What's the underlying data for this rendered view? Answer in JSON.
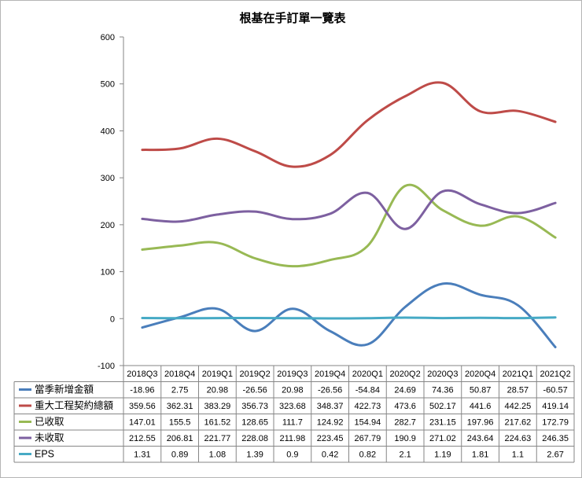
{
  "chart_data": {
    "type": "line",
    "title": "根基在手訂單一覽表",
    "categories": [
      "2018Q3",
      "2018Q4",
      "2019Q1",
      "2019Q2",
      "2019Q3",
      "2019Q4",
      "2020Q1",
      "2020Q2",
      "2020Q3",
      "2020Q4",
      "2021Q1",
      "2021Q2"
    ],
    "ylim": [
      -100,
      600
    ],
    "yticks": [
      "-100",
      "0",
      "100",
      "200",
      "300",
      "400",
      "500",
      "600"
    ],
    "ytick_values": [
      -100,
      0,
      100,
      200,
      300,
      400,
      500,
      600
    ],
    "gridlines": false,
    "legend": "data-table-below",
    "series": [
      {
        "name": "當季新增金額",
        "color": "#4a7ebb",
        "values": [
          -18.96,
          2.75,
          20.98,
          -26.56,
          20.98,
          -26.56,
          -54.84,
          24.69,
          74.36,
          50.87,
          28.57,
          -60.57
        ]
      },
      {
        "name": "重大工程契約總額",
        "color": "#be4b48",
        "values": [
          359.56,
          362.31,
          383.29,
          356.73,
          323.68,
          348.37,
          422.73,
          473.6,
          502.17,
          441.6,
          442.25,
          419.14
        ]
      },
      {
        "name": "已收取",
        "color": "#98b954",
        "values": [
          147.01,
          155.5,
          161.52,
          128.65,
          111.7,
          124.92,
          154.94,
          282.7,
          231.15,
          197.96,
          217.62,
          172.79
        ]
      },
      {
        "name": "未收取",
        "color": "#7d60a0",
        "values": [
          212.55,
          206.81,
          221.77,
          228.08,
          211.98,
          223.45,
          267.79,
          190.9,
          271.02,
          243.64,
          224.63,
          246.35
        ]
      },
      {
        "name": "EPS",
        "color": "#46aac5",
        "values": [
          1.31,
          0.89,
          1.08,
          1.39,
          0.9,
          0.42,
          0.82,
          2.1,
          1.19,
          1.81,
          1.1,
          2.67
        ]
      }
    ]
  }
}
